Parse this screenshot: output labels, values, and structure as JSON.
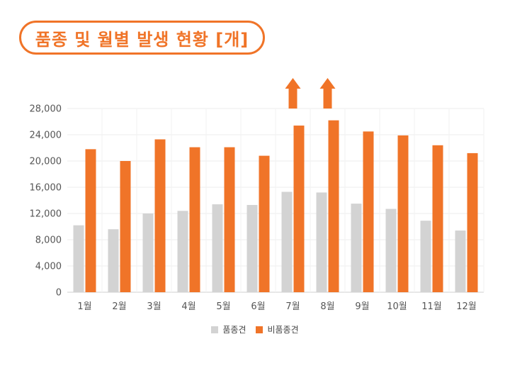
{
  "title": "품종 및 월별 발생 현황 [개]",
  "colors": {
    "series1": "#d3d3d3",
    "series2": "#f07428",
    "accent": "#f07428"
  },
  "chart_data": {
    "type": "bar",
    "categories": [
      "1월",
      "2월",
      "3월",
      "4월",
      "5월",
      "6월",
      "7월",
      "8월",
      "9월",
      "10월",
      "11월",
      "12월"
    ],
    "series": [
      {
        "name": "품종견",
        "values": [
          10200,
          9600,
          12000,
          12400,
          13400,
          13300,
          15300,
          15200,
          13500,
          12700,
          10900,
          9400
        ]
      },
      {
        "name": "비품종견",
        "values": [
          21800,
          20000,
          23300,
          22100,
          22100,
          20800,
          25400,
          26200,
          24500,
          23900,
          22400,
          21200
        ]
      }
    ],
    "ylim": [
      0,
      28000
    ],
    "yticks": [
      0,
      4000,
      8000,
      12000,
      16000,
      20000,
      24000,
      28000
    ],
    "ytick_labels": [
      "0",
      "4,000",
      "8,000",
      "12,000",
      "16,000",
      "20,000",
      "24,000",
      "28,000"
    ],
    "highlight_arrows": [
      "7월",
      "8월"
    ],
    "grid": true,
    "legend_position": "bottom-center"
  }
}
